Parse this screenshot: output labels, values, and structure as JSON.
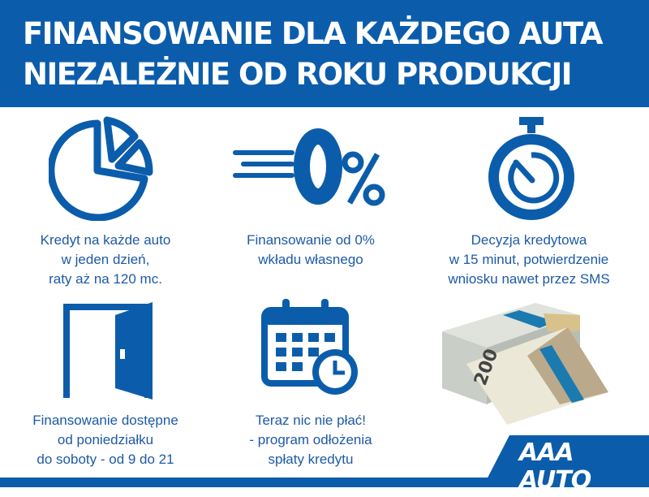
{
  "header": {
    "line1": "FINANSOWANIE DLA KAŻDEGO AUTA",
    "line2": "NIEZALEŻNIE OD ROKU PRODUKCJI"
  },
  "features": [
    {
      "icon": "pie-chart-icon",
      "lines": [
        "Kredyt na każde auto",
        "w jeden dzień,",
        "raty aż na 120 mc."
      ]
    },
    {
      "icon": "zero-percent-icon",
      "lines": [
        "Finansowanie od 0%",
        "wkładu własnego"
      ]
    },
    {
      "icon": "stopwatch-icon",
      "lines": [
        "Decyzja kredytowa",
        "w 15 minut, potwierdzenie",
        "wniosku nawet przez SMS"
      ]
    },
    {
      "icon": "open-door-icon",
      "lines": [
        "Finansowanie dostępne",
        "od poniedziałku",
        "do soboty - od 9 do 21"
      ]
    },
    {
      "icon": "calendar-clock-icon",
      "lines": [
        "Teraz nic nie płać!",
        "- program odłożenia",
        "spłaty kredytu"
      ]
    }
  ],
  "image": {
    "icon": "banknote-stacks-icon",
    "note_value": "200"
  },
  "logo": {
    "text": "AAA AUTO"
  },
  "colors": {
    "brand_blue": "#0b5dab",
    "text_blue": "#1d5aa6"
  }
}
